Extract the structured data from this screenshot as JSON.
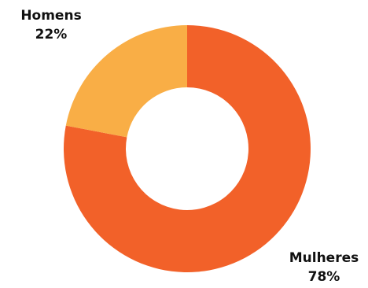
{
  "chart_data": {
    "type": "pie",
    "variant": "donut",
    "title": "",
    "slices": [
      {
        "label": "Mulheres",
        "value": 78,
        "value_label": "78%",
        "color": "#F26129"
      },
      {
        "label": "Homens",
        "value": 22,
        "value_label": "22%",
        "color": "#F9AE46"
      }
    ]
  }
}
